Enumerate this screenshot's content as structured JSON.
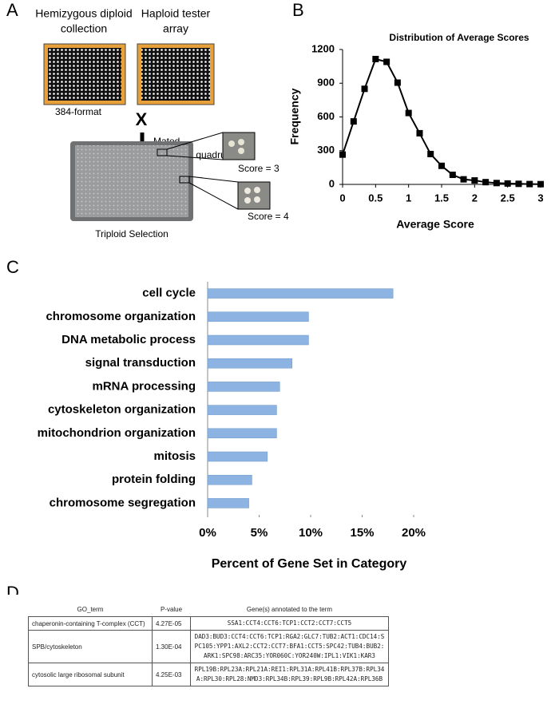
{
  "panel_labels": [
    "A",
    "B",
    "C",
    "D"
  ],
  "panel_a": {
    "left_plate_label": [
      "Hemizygous diploid",
      "collection"
    ],
    "right_plate_label": [
      "Haploid tester",
      "array"
    ],
    "cross": "X",
    "format": "384-format",
    "step": [
      "Mated",
      "Pinned in quadruplicate"
    ],
    "score_3": "Score = 3",
    "score_4": "Score = 4",
    "selection": "Triploid Selection"
  },
  "chart_data": [
    {
      "type": "line",
      "title": "Distribution of Average Scores",
      "x_label": "Average Score",
      "y_label": "Frequency",
      "x": [
        0,
        0.167,
        0.333,
        0.5,
        0.667,
        0.833,
        1,
        1.167,
        1.333,
        1.5,
        1.667,
        1.833,
        2,
        2.167,
        2.333,
        2.5,
        2.667,
        2.833,
        3
      ],
      "series": [
        {
          "color": "#000000",
          "values": [
            265,
            560,
            850,
            1115,
            1090,
            905,
            635,
            455,
            270,
            165,
            85,
            45,
            35,
            20,
            12,
            8,
            5,
            3,
            2
          ]
        }
      ],
      "xlim": [
        0,
        3
      ],
      "xticks": [
        0,
        0.5,
        1,
        1.5,
        2,
        2.5,
        3
      ],
      "ylim": [
        0,
        1200
      ],
      "yticks": [
        0,
        300,
        600,
        900,
        1200
      ],
      "grid": false
    },
    {
      "type": "bar",
      "orientation": "horizontal",
      "x_label": "Percent of Gene Set in Category",
      "categories": [
        "cell cycle",
        "chromosome organization",
        "DNA metabolic process",
        "signal transduction",
        "mRNA processing",
        "cytoskeleton organization",
        "mitochondrion organization",
        "mitosis",
        "protein folding",
        "chromosome segregation"
      ],
      "values": [
        18,
        9.8,
        9.8,
        8.2,
        7,
        6.7,
        6.7,
        5.8,
        4.3,
        4
      ],
      "color": "#8db3e2",
      "xlim": [
        0,
        20
      ],
      "xticks": [
        {
          "value": 0,
          "label": "0%"
        },
        {
          "value": 5,
          "label": "5%"
        },
        {
          "value": 10,
          "label": "10%"
        },
        {
          "value": 15,
          "label": "15%"
        },
        {
          "value": 20,
          "label": "20%"
        }
      ],
      "grid": false
    }
  ],
  "table": {
    "header": [
      "GO_term",
      "P-value",
      "Gene(s) annotated to the term"
    ],
    "rows": [
      [
        "chaperonin-containing T-complex (CCT)",
        "4.27E-05",
        "SSA1:CCT4:CCT6:TCP1:CCT2:CCT7:CCT5"
      ],
      [
        "SPB/cytoskeleton",
        "1.30E-04",
        "DAD3:BUD3:CCT4:CCT6:TCP1:RGA2:GLC7:TUB2:ACT1:CDC14:SPC105:YPP1:AXL2:CCT2:CCT7:BFA1:CCT5:SPC42:TUB4:BUB2:ARK1:SPC98:ARC35:YOR060C:YOR240W:IPL1:VIK1:KAR3"
      ],
      [
        "cytosolic large ribosomal subunit",
        "4.25E-03",
        "RPL19B:RPL23A:RPL21A:REI1:RPL31A:RPL41B:RPL37B:RPL34A:RPL30:RPL28:NMD3:RPL34B:RPL39:RPL9B:RPL42A:RPL36B"
      ]
    ]
  }
}
